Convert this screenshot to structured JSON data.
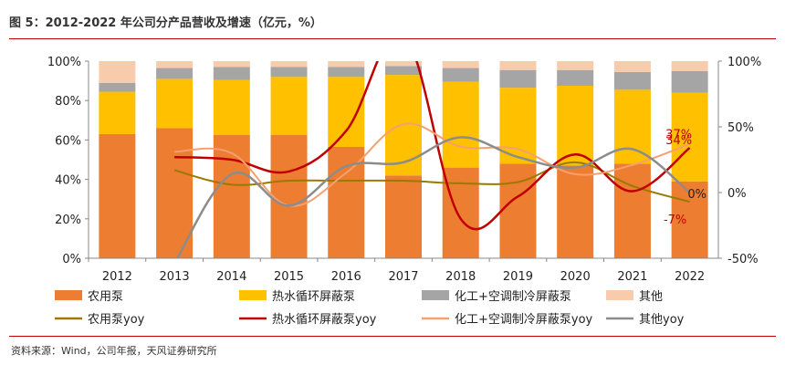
{
  "header": {
    "title": "图 5：2012-2022 年公司分产品营收及增速（亿元，%）"
  },
  "footer": {
    "source": "资料来源：Wind，公司年报，天风证券研究所"
  },
  "chart_data": {
    "type": "bar",
    "stacked": true,
    "categories": [
      "2012",
      "2013",
      "2014",
      "2015",
      "2016",
      "2017",
      "2018",
      "2019",
      "2020",
      "2021",
      "2022"
    ],
    "left_axis": {
      "ylim": [
        0,
        100
      ],
      "ticks": [
        "0%",
        "20%",
        "40%",
        "60%",
        "80%",
        "100%"
      ]
    },
    "right_axis": {
      "ylim": [
        -50,
        100
      ],
      "ticks": [
        "-50%",
        "0%",
        "50%",
        "100%"
      ]
    },
    "grid": false,
    "legend_placement": "bottom",
    "series": [
      {
        "name": "农用泵",
        "kind": "bar",
        "color": "#ED7D31",
        "values": [
          63,
          66,
          62.5,
          62.5,
          56.5,
          42,
          46,
          48,
          47,
          48,
          39
        ]
      },
      {
        "name": "热水循环屏蔽泵",
        "kind": "bar",
        "color": "#FFC000",
        "values": [
          21.5,
          25,
          28,
          29.5,
          35.5,
          51,
          43.5,
          38.5,
          40.5,
          37.5,
          45
        ]
      },
      {
        "name": "化工+空调制冷屏蔽泵",
        "kind": "bar",
        "color": "#A5A5A5",
        "values": [
          4.5,
          5.5,
          6.5,
          5,
          5,
          4.5,
          7,
          9,
          8,
          9,
          11
        ]
      },
      {
        "name": "其他",
        "kind": "bar",
        "color": "#F8CBAD",
        "values": [
          11,
          3.5,
          3,
          3,
          3,
          2.5,
          3.5,
          4.5,
          4.5,
          5.5,
          5
        ]
      },
      {
        "name": "农用泵yoy",
        "kind": "line",
        "axis": "right",
        "color": "#9C7A00",
        "width": 2,
        "values": [
          null,
          17,
          6,
          9,
          9,
          9,
          7,
          8,
          23,
          5,
          -7
        ]
      },
      {
        "name": "热水循环屏蔽泵yoy",
        "kind": "line",
        "axis": "right",
        "color": "#C00000",
        "width": 2.5,
        "values": [
          null,
          27,
          25,
          16,
          47,
          120,
          -20,
          -3,
          29,
          1,
          34
        ]
      },
      {
        "name": "化工+空调制冷屏蔽泵yoy",
        "kind": "line",
        "axis": "right",
        "color": "#F4A070",
        "width": 2,
        "values": [
          null,
          31,
          30,
          -10,
          15,
          52,
          35,
          33,
          14,
          21,
          37
        ]
      },
      {
        "name": "其他yoy",
        "kind": "line",
        "axis": "right",
        "color": "#8C8C8C",
        "width": 2.5,
        "values": [
          null,
          -54,
          14,
          -10,
          20,
          23,
          42,
          27,
          19,
          33,
          0
        ]
      }
    ],
    "annotations": [
      {
        "text": "37%",
        "category": "2022",
        "value": 37,
        "axis": "right",
        "color": "#C00000"
      },
      {
        "text": "34%",
        "category": "2022",
        "value": 34,
        "axis": "right",
        "color": "#C00000"
      },
      {
        "text": "0%",
        "category": "2022",
        "value": 0,
        "axis": "right",
        "color": "#222222"
      },
      {
        "text": "-7%",
        "category": "2022",
        "value": -7,
        "axis": "right",
        "color": "#C00000"
      }
    ]
  }
}
